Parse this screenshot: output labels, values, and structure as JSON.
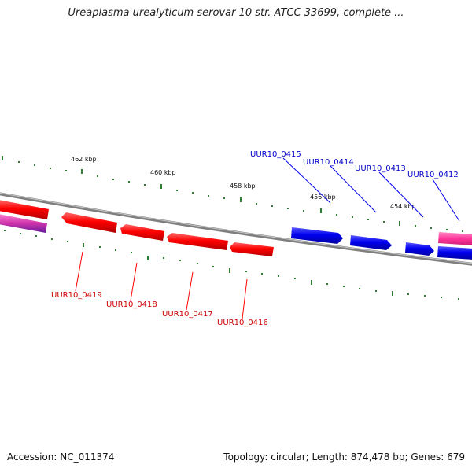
{
  "title": "Ureaplasma urealyticum serovar 10 str. ATCC 33699, complete ...",
  "footer": {
    "accession": "Accession: NC_011374",
    "summary": "Topology: circular; Length: 874,478 bp; Genes: 679"
  },
  "colors": {
    "reverse_gene": "#ff0000",
    "forward_gene": "#0000ee",
    "rna_gene": "#ff3399",
    "backbone": "#808080",
    "tick": "#2e7d32"
  },
  "scale_labels": [
    "462 kbp",
    "460 kbp",
    "458 kbp",
    "456 kbp",
    "454 kbp"
  ],
  "genes_reverse": [
    {
      "label": "UUR10_0419"
    },
    {
      "label": "UUR10_0418"
    },
    {
      "label": "UUR10_0417"
    },
    {
      "label": "UUR10_0416"
    }
  ],
  "genes_forward": [
    {
      "label": "UUR10_0415"
    },
    {
      "label": "UUR10_0414"
    },
    {
      "label": "UUR10_0413"
    },
    {
      "label": "UUR10_0412"
    }
  ]
}
